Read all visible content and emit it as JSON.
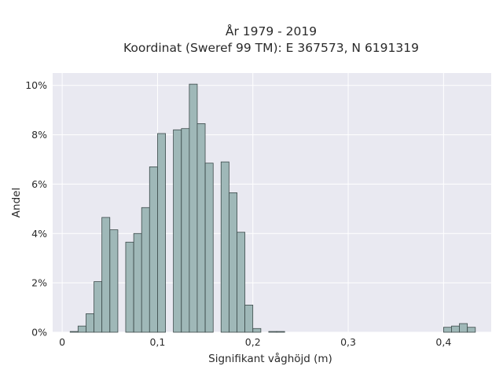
{
  "chart_data": {
    "type": "bar",
    "title_line1": "År 1979 - 2019",
    "title_line2": "Koordinat (Sweref 99 TM): E 367573, N 6191319",
    "xlabel": "Signifikant våghöjd (m)",
    "ylabel": "Andel",
    "xlim": [
      -0.01,
      0.45
    ],
    "ylim": [
      0,
      10.5
    ],
    "grid": true,
    "x_ticks": [
      {
        "value": 0,
        "label": "0"
      },
      {
        "value": 0.1,
        "label": "0,1"
      },
      {
        "value": 0.2,
        "label": "0,2"
      },
      {
        "value": 0.3,
        "label": "0,3"
      },
      {
        "value": 0.4,
        "label": "0,4"
      }
    ],
    "y_ticks": [
      {
        "value": 0,
        "label": "0%"
      },
      {
        "value": 2,
        "label": "2%"
      },
      {
        "value": 4,
        "label": "4%"
      },
      {
        "value": 6,
        "label": "6%"
      },
      {
        "value": 8,
        "label": "8%"
      },
      {
        "value": 10,
        "label": "10%"
      }
    ],
    "bin_width": 0.00833,
    "bars": [
      {
        "x": 0.0125,
        "y": 0.03
      },
      {
        "x": 0.0208,
        "y": 0.25
      },
      {
        "x": 0.0292,
        "y": 0.75
      },
      {
        "x": 0.0375,
        "y": 2.05
      },
      {
        "x": 0.0458,
        "y": 4.65
      },
      {
        "x": 0.0542,
        "y": 4.15
      },
      {
        "x": 0.0708,
        "y": 3.65
      },
      {
        "x": 0.0792,
        "y": 4.0
      },
      {
        "x": 0.0875,
        "y": 5.05
      },
      {
        "x": 0.0958,
        "y": 6.7
      },
      {
        "x": 0.1042,
        "y": 8.05
      },
      {
        "x": 0.1208,
        "y": 8.2
      },
      {
        "x": 0.1292,
        "y": 8.25
      },
      {
        "x": 0.1375,
        "y": 10.05
      },
      {
        "x": 0.1458,
        "y": 8.45
      },
      {
        "x": 0.1542,
        "y": 6.85
      },
      {
        "x": 0.1708,
        "y": 6.9
      },
      {
        "x": 0.1792,
        "y": 5.65
      },
      {
        "x": 0.1875,
        "y": 4.05
      },
      {
        "x": 0.1958,
        "y": 1.1
      },
      {
        "x": 0.2042,
        "y": 0.15
      },
      {
        "x": 0.2208,
        "y": 0.03
      },
      {
        "x": 0.2292,
        "y": 0.03
      },
      {
        "x": 0.4042,
        "y": 0.2
      },
      {
        "x": 0.4125,
        "y": 0.25
      },
      {
        "x": 0.4208,
        "y": 0.35
      },
      {
        "x": 0.4292,
        "y": 0.2
      }
    ],
    "colors": {
      "bar_fill": "#9fb8b8",
      "bar_stroke": "#3c4a4a",
      "plot_bg": "#e9e9f1",
      "grid": "#ffffff"
    }
  }
}
